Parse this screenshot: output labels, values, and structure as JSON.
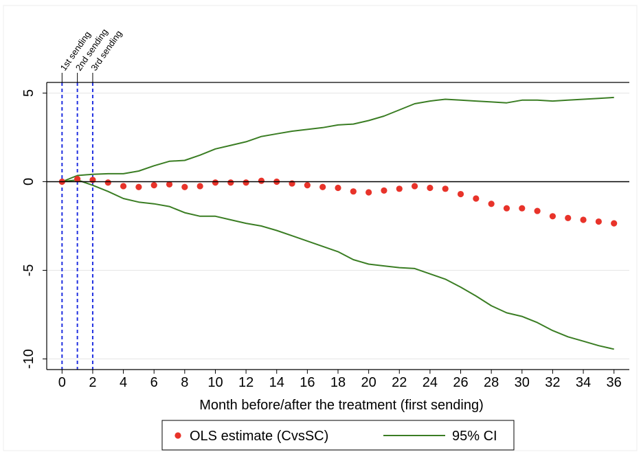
{
  "chart_data": {
    "type": "scatter",
    "title": "",
    "xlabel": "Month before/after the treatment (first sending)",
    "ylabel": "",
    "xlim": [
      -1,
      37
    ],
    "ylim": [
      -10.6,
      5.6
    ],
    "x_ticks": [
      0,
      2,
      4,
      6,
      8,
      10,
      12,
      14,
      16,
      18,
      20,
      22,
      24,
      26,
      28,
      30,
      32,
      34,
      36
    ],
    "y_ticks": [
      5,
      0,
      -5,
      -10
    ],
    "grid": true,
    "colors": {
      "estimate": "#e8332a",
      "ci": "#3a7d23",
      "vlines": "#1f2ee0"
    },
    "months": [
      0,
      1,
      2,
      3,
      4,
      5,
      6,
      7,
      8,
      9,
      10,
      11,
      12,
      13,
      14,
      15,
      16,
      17,
      18,
      19,
      20,
      21,
      22,
      23,
      24,
      25,
      26,
      27,
      28,
      29,
      30,
      31,
      32,
      33,
      34,
      35,
      36
    ],
    "series": [
      {
        "name": "OLS estimate (CvsSC)",
        "kind": "points",
        "values": [
          0.0,
          0.15,
          0.1,
          -0.05,
          -0.25,
          -0.3,
          -0.2,
          -0.15,
          -0.3,
          -0.25,
          -0.05,
          -0.05,
          -0.05,
          0.05,
          0.0,
          -0.1,
          -0.2,
          -0.3,
          -0.35,
          -0.55,
          -0.6,
          -0.5,
          -0.4,
          -0.25,
          -0.35,
          -0.4,
          -0.7,
          -0.95,
          -1.25,
          -1.5,
          -1.5,
          -1.65,
          -1.95,
          -2.05,
          -2.15,
          -2.25,
          -2.35
        ]
      },
      {
        "name": "95% CI",
        "kind": "line",
        "values": [
          0.0,
          0.35,
          0.42,
          0.45,
          0.45,
          0.6,
          0.9,
          1.15,
          1.2,
          1.5,
          1.85,
          2.05,
          2.25,
          2.55,
          2.7,
          2.85,
          2.95,
          3.05,
          3.2,
          3.25,
          3.45,
          3.7,
          4.05,
          4.4,
          4.55,
          4.65,
          4.6,
          4.55,
          4.5,
          4.45,
          4.6,
          4.6,
          4.55,
          4.6,
          4.65,
          4.7,
          4.75
        ]
      },
      {
        "kind": "line",
        "values": [
          0.0,
          0.1,
          -0.2,
          -0.55,
          -0.95,
          -1.15,
          -1.25,
          -1.4,
          -1.75,
          -1.95,
          -1.95,
          -2.15,
          -2.35,
          -2.5,
          -2.75,
          -3.05,
          -3.35,
          -3.65,
          -3.95,
          -4.4,
          -4.65,
          -4.75,
          -4.85,
          -4.9,
          -5.2,
          -5.5,
          -5.95,
          -6.45,
          -7.0,
          -7.4,
          -7.6,
          -7.95,
          -8.4,
          -8.75,
          -9.0,
          -9.25,
          -9.45
        ]
      }
    ],
    "vertical_lines": [
      {
        "x": 0,
        "label": "1st sending"
      },
      {
        "x": 1,
        "label": "2nd sending"
      },
      {
        "x": 2,
        "label": "3rd sending"
      }
    ],
    "reference_line_y": 0,
    "legend": {
      "placement": "bottom",
      "entries": [
        {
          "label": "OLS estimate (CvsSC)",
          "marker": "dot"
        },
        {
          "label": "95% CI",
          "marker": "line"
        }
      ]
    }
  }
}
